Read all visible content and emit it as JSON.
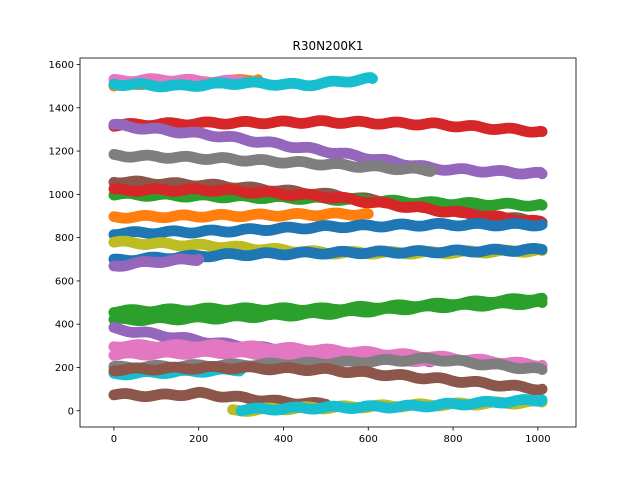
{
  "chart_data": {
    "type": "scatter",
    "title": "R30N200K1",
    "xlabel": "",
    "ylabel": "",
    "xlim": [
      -80,
      1090
    ],
    "ylim": [
      -75,
      1630
    ],
    "xticks": [
      0,
      200,
      400,
      600,
      800,
      1000
    ],
    "yticks": [
      0,
      200,
      400,
      600,
      800,
      1000,
      1200,
      1400,
      1600
    ],
    "grid": false,
    "legend": "none",
    "colors": [
      "#1f77b4",
      "#ff7f0e",
      "#2ca02c",
      "#d62728",
      "#9467bd",
      "#8c564b",
      "#e377c2",
      "#7f7f7f",
      "#bcbd22",
      "#17becf"
    ],
    "series": [
      {
        "color_index": 1,
        "x": [
          0,
          100,
          200,
          340
        ],
        "y": [
          1500,
          1520,
          1515,
          1530
        ]
      },
      {
        "color_index": 6,
        "x": [
          0,
          120,
          250,
          300
        ],
        "y": [
          1525,
          1530,
          1520,
          1525
        ]
      },
      {
        "color_index": 9,
        "x": [
          0,
          150,
          300,
          450,
          610
        ],
        "y": [
          1510,
          1500,
          1515,
          1505,
          1535
        ]
      },
      {
        "color_index": 3,
        "x": [
          0,
          250,
          500,
          750,
          1010
        ],
        "y": [
          1320,
          1330,
          1335,
          1325,
          1290
        ]
      },
      {
        "color_index": 4,
        "x": [
          0,
          250,
          500,
          750,
          1010
        ],
        "y": [
          1320,
          1270,
          1200,
          1120,
          1095
        ]
      },
      {
        "color_index": 7,
        "x": [
          0,
          250,
          500,
          750
        ],
        "y": [
          1180,
          1165,
          1140,
          1110
        ]
      },
      {
        "color_index": 5,
        "x": [
          0,
          250,
          500,
          750,
          1010
        ],
        "y": [
          1060,
          1040,
          1000,
          940,
          870
        ]
      },
      {
        "color_index": 2,
        "x": [
          0,
          250,
          500,
          750,
          1010
        ],
        "y": [
          1000,
          990,
          980,
          960,
          950
        ]
      },
      {
        "color_index": 3,
        "x": [
          0,
          250,
          500,
          750,
          1010
        ],
        "y": [
          1020,
          1020,
          990,
          930,
          870
        ]
      },
      {
        "color_index": 1,
        "x": [
          0,
          200,
          400,
          600
        ],
        "y": [
          895,
          900,
          905,
          910
        ]
      },
      {
        "color_index": 0,
        "x": [
          0,
          250,
          500,
          750,
          1010
        ],
        "y": [
          820,
          830,
          850,
          860,
          860
        ]
      },
      {
        "color_index": 8,
        "x": [
          0,
          250,
          500,
          750,
          1010
        ],
        "y": [
          780,
          760,
          730,
          730,
          740
        ]
      },
      {
        "color_index": 0,
        "x": [
          0,
          250,
          500,
          750,
          1010
        ],
        "y": [
          695,
          720,
          730,
          735,
          745
        ]
      },
      {
        "color_index": 4,
        "x": [
          0,
          100,
          200
        ],
        "y": [
          670,
          690,
          700
        ]
      },
      {
        "color_index": 2,
        "x": [
          0,
          250,
          500,
          750,
          1010
        ],
        "y": [
          460,
          470,
          470,
          490,
          520
        ]
      },
      {
        "color_index": 2,
        "x": [
          0,
          250,
          500,
          750,
          1010
        ],
        "y": [
          420,
          430,
          450,
          480,
          500
        ]
      },
      {
        "color_index": 4,
        "x": [
          0,
          250,
          500,
          750
        ],
        "y": [
          380,
          310,
          260,
          230
        ]
      },
      {
        "color_index": 6,
        "x": [
          0,
          250,
          500,
          750,
          1010
        ],
        "y": [
          300,
          300,
          280,
          250,
          210
        ]
      },
      {
        "color_index": 6,
        "x": [
          0,
          250,
          500,
          750
        ],
        "y": [
          260,
          270,
          250,
          230
        ]
      },
      {
        "color_index": 7,
        "x": [
          0,
          250,
          500,
          750,
          1010
        ],
        "y": [
          200,
          210,
          220,
          240,
          190
        ]
      },
      {
        "color_index": 9,
        "x": [
          0,
          150,
          300
        ],
        "y": [
          170,
          180,
          190
        ]
      },
      {
        "color_index": 5,
        "x": [
          0,
          250,
          500,
          750,
          1010
        ],
        "y": [
          190,
          200,
          190,
          150,
          100
        ]
      },
      {
        "color_index": 5,
        "x": [
          0,
          100,
          200,
          300,
          400,
          500
        ],
        "y": [
          75,
          70,
          80,
          60,
          40,
          30
        ]
      },
      {
        "color_index": 8,
        "x": [
          280,
          400,
          600,
          800,
          1010
        ],
        "y": [
          0,
          10,
          20,
          30,
          40
        ]
      },
      {
        "color_index": 9,
        "x": [
          300,
          500,
          700,
          900,
          1010
        ],
        "y": [
          5,
          15,
          20,
          40,
          50
        ]
      }
    ]
  }
}
